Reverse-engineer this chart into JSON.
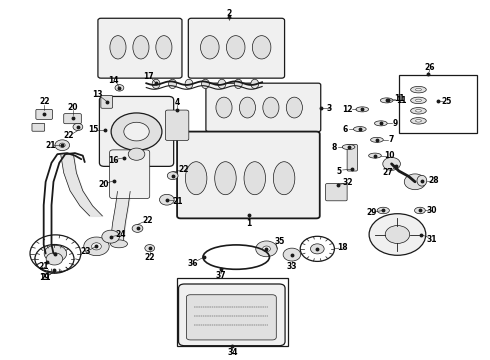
{
  "bg_color": "#ffffff",
  "line_color": "#1a1a1a",
  "fill_light": "#f0f0f0",
  "fill_mid": "#e0e0e0",
  "fill_dark": "#c8c8c8",
  "lw_main": 0.9,
  "lw_thin": 0.5,
  "lw_thick": 1.3,
  "fs": 5.5
}
